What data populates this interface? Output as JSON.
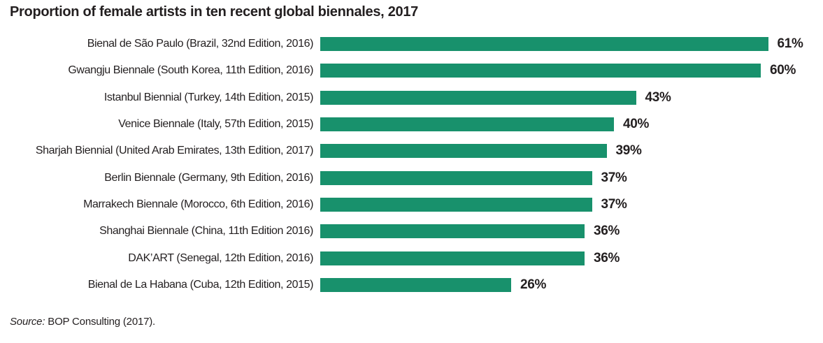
{
  "title": "Proportion of female artists in ten recent global biennales, 2017",
  "source": {
    "prefix": "Source:",
    "text": " BOP Consulting (2017)."
  },
  "colors": {
    "bar": "#18916c",
    "text": "#231f20",
    "background": "#ffffff"
  },
  "chart_data": {
    "type": "bar",
    "orientation": "horizontal",
    "title": "Proportion of female artists in ten recent global biennales, 2017",
    "categories": [
      "Bienal de São Paulo (Brazil, 32nd Edition, 2016)",
      "Gwangju Biennale (South Korea, 11th Edition, 2016)",
      "Istanbul Biennial (Turkey, 14th Edition, 2015)",
      "Venice Biennale (Italy, 57th Edition, 2015)",
      "Sharjah Biennial (United Arab Emirates, 13th Edition, 2017)",
      "Berlin Biennale (Germany, 9th Edition, 2016)",
      "Marrakech Biennale (Morocco, 6th Edition, 2016)",
      "Shanghai Biennale (China, 11th Edition 2016)",
      "DAK’ART (Senegal, 12th Edition, 2016)",
      "Bienal de La Habana (Cuba, 12th Edition, 2015)"
    ],
    "values": [
      61,
      60,
      43,
      40,
      39,
      37,
      37,
      36,
      36,
      26
    ],
    "value_labels": [
      "61%",
      "60%",
      "43%",
      "40%",
      "39%",
      "37%",
      "37%",
      "36%",
      "36%",
      "26%"
    ],
    "value_suffix": "%",
    "xlabel": "",
    "ylabel": "",
    "xlim": [
      0,
      65
    ],
    "grid": false,
    "axis_lines": false,
    "legend": null,
    "bar_color": "#18916c"
  }
}
